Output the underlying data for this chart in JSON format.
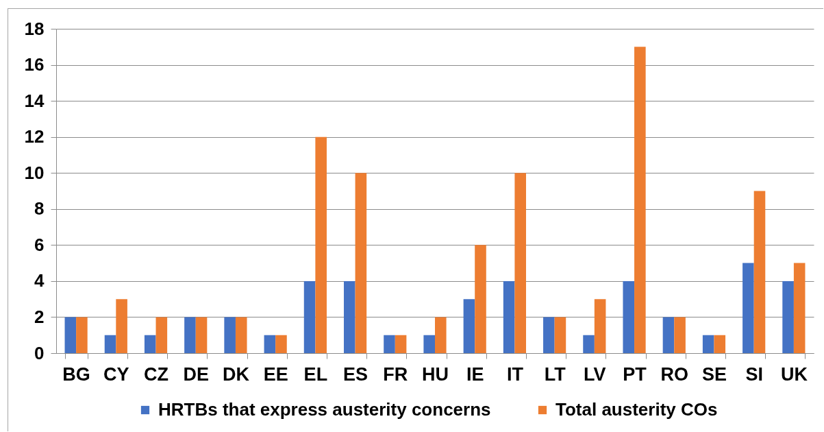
{
  "chart_data": {
    "type": "bar",
    "categories": [
      "BG",
      "CY",
      "CZ",
      "DE",
      "DK",
      "EE",
      "EL",
      "ES",
      "FR",
      "HU",
      "IE",
      "IT",
      "LT",
      "LV",
      "PT",
      "RO",
      "SE",
      "SI",
      "UK"
    ],
    "series": [
      {
        "name": "HRTBs that express austerity concerns",
        "color": "#4472c4",
        "values": [
          2,
          1,
          1,
          2,
          2,
          1,
          4,
          4,
          1,
          1,
          3,
          4,
          2,
          1,
          4,
          2,
          1,
          5,
          4
        ]
      },
      {
        "name": "Total austerity COs",
        "color": "#ed7d31",
        "values": [
          2,
          3,
          2,
          2,
          2,
          1,
          12,
          10,
          1,
          2,
          6,
          10,
          2,
          3,
          17,
          2,
          1,
          9,
          5
        ]
      }
    ],
    "ylim": [
      0,
      18
    ],
    "yticks": [
      0,
      2,
      4,
      6,
      8,
      10,
      12,
      14,
      16,
      18
    ],
    "grid": "y",
    "legend": "bottom"
  }
}
